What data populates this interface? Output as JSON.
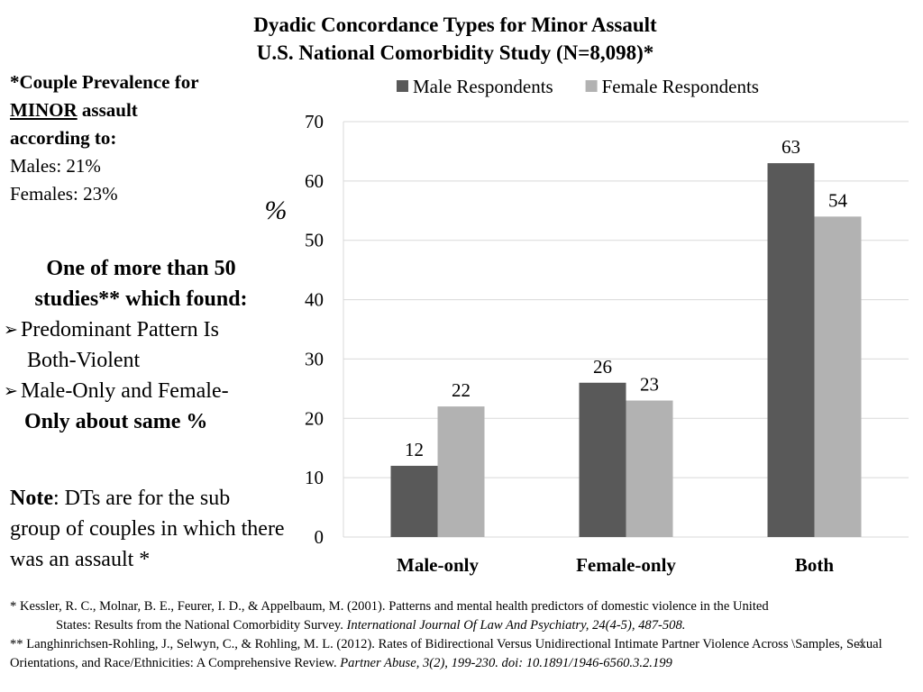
{
  "title": {
    "line1": "Dyadic Concordance Types for Minor Assault",
    "line2": "U.S. National Comorbidity Study (N=8,098)*"
  },
  "prevalence": {
    "heading_pre": "*Couple Prevalence for",
    "heading_minor": "MINOR",
    "heading_post": " assault",
    "heading_line3": "according to:",
    "males": "Males: 21%",
    "females": "Females: 23%"
  },
  "studies": {
    "heading_line1": "One of more than 50",
    "heading_line2": "studies**  which found:",
    "bullet1_line1": "Predominant Pattern Is",
    "bullet1_line2": "Both-Violent",
    "bullet2_line1": "Male-Only and Female-",
    "bullet2_line2": "Only about same %",
    "bullet_icon": "arrow-bullet-icon"
  },
  "note": {
    "label": "Note",
    "text": ":  DTs are for the sub group of couples in which there was an assault *"
  },
  "chart_data": {
    "type": "bar",
    "title": "",
    "xlabel": "",
    "ylabel": "%",
    "categories": [
      "Male-only",
      "Female-only",
      "Both"
    ],
    "series": [
      {
        "name": "Male Respondents",
        "values": [
          12,
          26,
          63
        ],
        "color": "#595959"
      },
      {
        "name": "Female Respondents",
        "values": [
          22,
          23,
          54
        ],
        "color": "#b2b2b2"
      }
    ],
    "ylim": [
      0,
      70
    ],
    "yticks": [
      0,
      10,
      20,
      30,
      40,
      50,
      60,
      70
    ],
    "grid": true,
    "legend": "top",
    "data_labels": true
  },
  "references": {
    "ref1_plain": "* Kessler, R. C., Molnar, B. E., Feurer, I. D., & Appelbaum, M. (2001). Patterns and mental health predictors of domestic violence in the United",
    "ref1_cont": "States: Results from the National Comorbidity Survey. ",
    "ref1_italic": "International Journal Of Law And Psychiatry, 24(4-5), 487-508.",
    "ref2_plain": "**  Langhinrichsen-Rohling, J., Selwyn, C., & Rohling, M. L. (2012). Rates of Bidirectional Versus Unidirectional Intimate Partner Violence Across \\Samples, Sexual Orientations, and Race/Ethnicities: A Comprehensive Review. ",
    "ref2_italic": "Partner Abuse, 3(2), 199-230. doi: 10.1891/1946-6560.3.2.199"
  },
  "slide_number": "4"
}
